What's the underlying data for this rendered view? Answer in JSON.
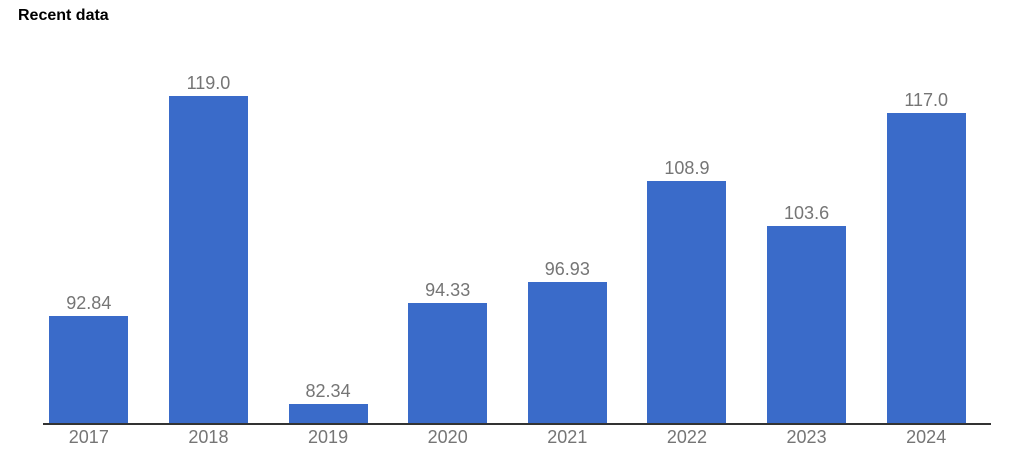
{
  "page": {
    "title": "Recent data"
  },
  "chart_data": {
    "type": "bar",
    "title": "Recent data",
    "categories": [
      "2017",
      "2018",
      "2019",
      "2020",
      "2021",
      "2022",
      "2023",
      "2024"
    ],
    "values": [
      92.84,
      119.0,
      82.34,
      94.33,
      96.93,
      108.9,
      103.6,
      117.0
    ],
    "value_labels": [
      "92.84",
      "119.0",
      "82.34",
      "94.33",
      "96.93",
      "108.9",
      "103.6",
      "117.0"
    ],
    "xlabel": "",
    "ylabel": "",
    "ylim": [
      80,
      124
    ],
    "grid": false,
    "legend": "none",
    "colors": {
      "bar": "#3A6BC9",
      "value_label": "#757575",
      "axis_label": "#757575",
      "axis_line": "#333333",
      "title": "#000000",
      "background": "#ffffff"
    }
  }
}
